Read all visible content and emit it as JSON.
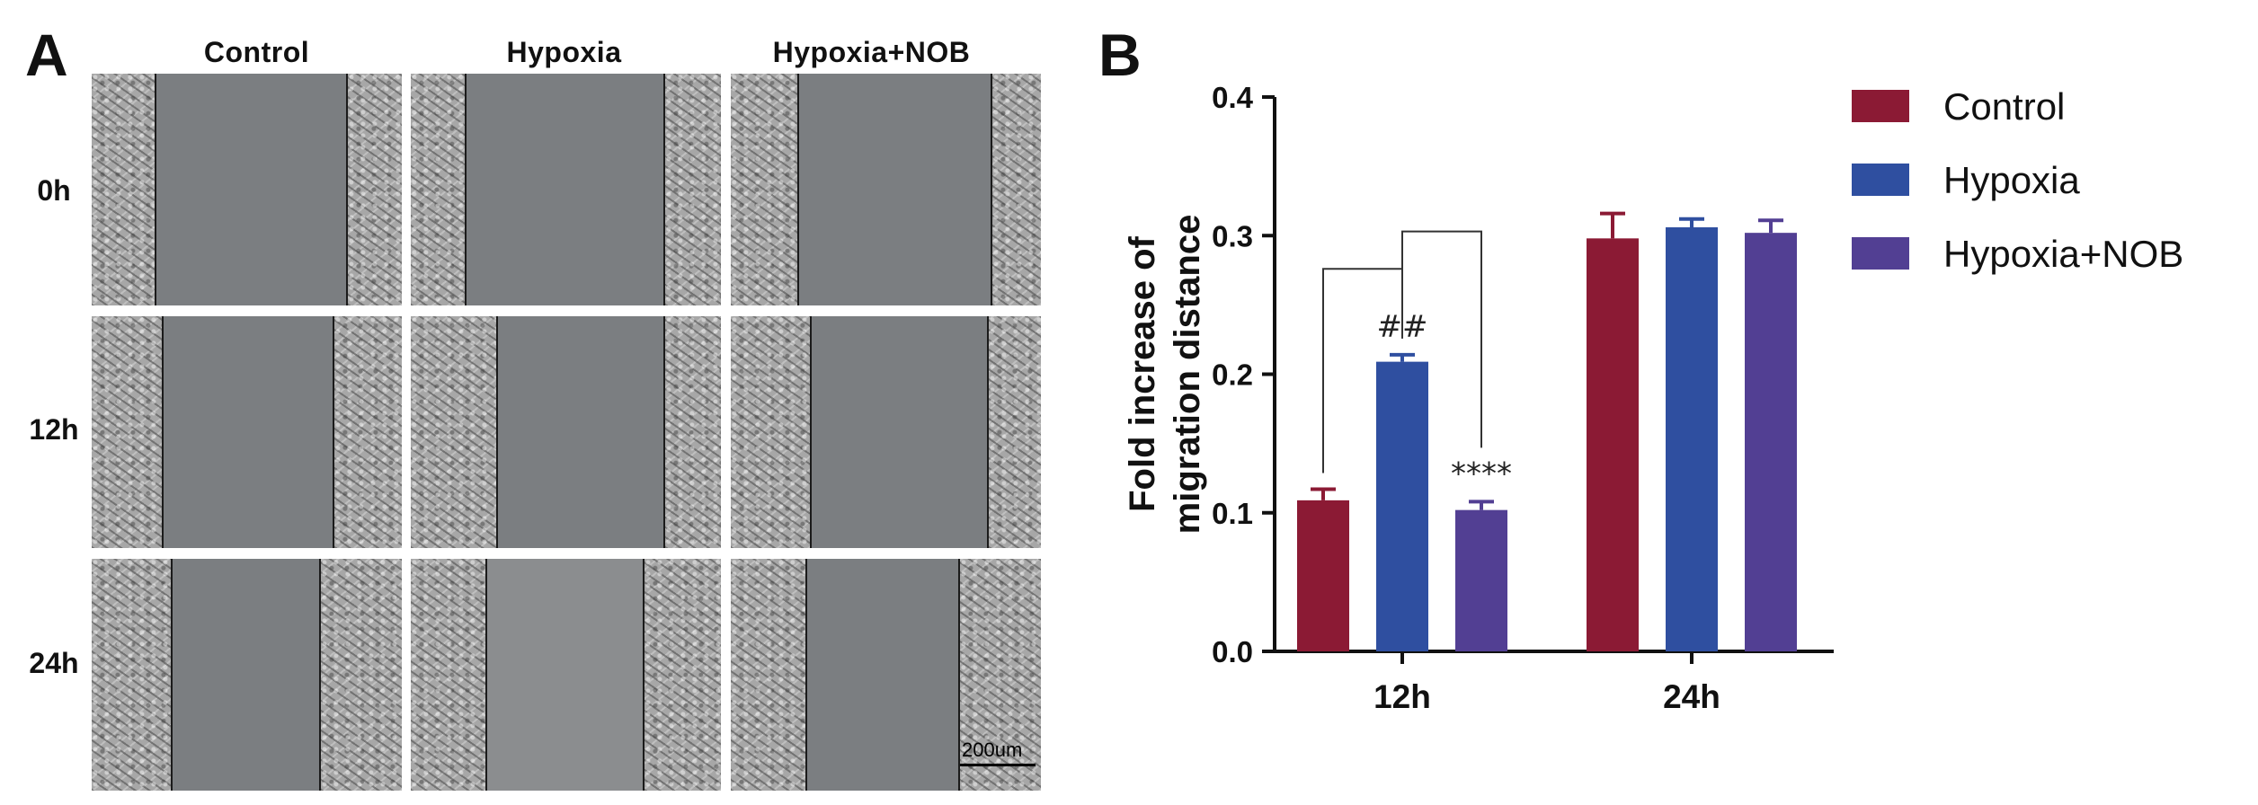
{
  "panel_a": {
    "letter": "A",
    "columns": [
      "Control",
      "Hypoxia",
      "Hypoxia+NOB"
    ],
    "rows": [
      "0h",
      "12h",
      "24h"
    ],
    "scale_bar_label": "200um"
  },
  "panel_b": {
    "letter": "B"
  },
  "chart_data": {
    "type": "bar",
    "title": "",
    "xlabel": "",
    "ylabel": "Fold increase of migration distance",
    "ylabel_lines": [
      "Fold increase of",
      "migration distance"
    ],
    "categories": [
      "12h",
      "24h"
    ],
    "ylim": [
      0,
      0.4
    ],
    "yticks": [
      0.0,
      0.1,
      0.2,
      0.3,
      0.4
    ],
    "ytick_labels": [
      "0.0",
      "0.1",
      "0.2",
      "0.3",
      "0.4"
    ],
    "grid": false,
    "legend_position": "top-right",
    "series": [
      {
        "name": "Control",
        "color": "#8b1a34",
        "values": [
          0.109,
          0.298
        ],
        "errors": [
          0.008,
          0.018
        ]
      },
      {
        "name": "Hypoxia",
        "color": "#2f4fa0",
        "values": [
          0.209,
          0.306
        ],
        "errors": [
          0.005,
          0.006
        ]
      },
      {
        "name": "Hypoxia+NOB",
        "color": "#523f93",
        "values": [
          0.102,
          0.302
        ],
        "errors": [
          0.006,
          0.009
        ]
      }
    ],
    "annotations": [
      {
        "text": "##",
        "category": "12h",
        "series": "Hypoxia"
      },
      {
        "text": "****",
        "category": "12h",
        "series": "Hypoxia+NOB"
      }
    ],
    "brackets": [
      {
        "category": "12h",
        "from": "Control",
        "to": "Hypoxia",
        "y": 0.276
      },
      {
        "category": "12h",
        "from": "Hypoxia",
        "to": "Hypoxia+NOB",
        "y": 0.303
      }
    ]
  }
}
